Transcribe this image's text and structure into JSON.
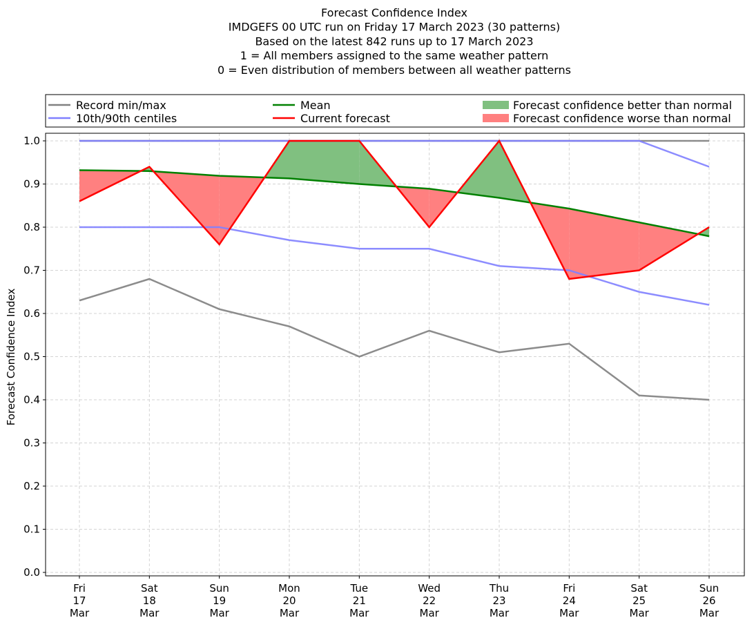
{
  "chart_data": {
    "type": "line",
    "title_lines": [
      "Forecast Confidence Index",
      "IMDGEFS 00 UTC run on Friday 17 March 2023 (30 patterns)",
      "Based on the latest 842 runs up to 17 March 2023",
      "1 = All members assigned to the same weather pattern",
      "0 = Even distribution of members between all weather patterns"
    ],
    "ylabel": "Forecast Confidence Index",
    "xlabel": "",
    "ylim": [
      0,
      1.0
    ],
    "yticks": [
      "0.0",
      "0.1",
      "0.2",
      "0.3",
      "0.4",
      "0.5",
      "0.6",
      "0.7",
      "0.8",
      "0.9",
      "1.0"
    ],
    "grid": true,
    "legend_placement": "top, above plot",
    "categories": [
      [
        "Fri",
        "17",
        "Mar"
      ],
      [
        "Sat",
        "18",
        "Mar"
      ],
      [
        "Sun",
        "19",
        "Mar"
      ],
      [
        "Mon",
        "20",
        "Mar"
      ],
      [
        "Tue",
        "21",
        "Mar"
      ],
      [
        "Wed",
        "22",
        "Mar"
      ],
      [
        "Thu",
        "23",
        "Mar"
      ],
      [
        "Fri",
        "24",
        "Mar"
      ],
      [
        "Sat",
        "25",
        "Mar"
      ],
      [
        "Sun",
        "26",
        "Mar"
      ]
    ],
    "series": [
      {
        "name": "Record min/max",
        "part": "min",
        "color": "#808080",
        "values": [
          0.63,
          0.68,
          0.61,
          0.57,
          0.5,
          0.56,
          0.51,
          0.53,
          0.41,
          0.4
        ]
      },
      {
        "name": "Record min/max",
        "part": "max",
        "color": "#808080",
        "values": [
          1.0,
          1.0,
          1.0,
          1.0,
          1.0,
          1.0,
          1.0,
          1.0,
          1.0,
          1.0
        ]
      },
      {
        "name": "10th/90th centiles",
        "part": "10th",
        "color": "#8080ff",
        "values": [
          0.8,
          0.8,
          0.8,
          0.77,
          0.75,
          0.75,
          0.71,
          0.7,
          0.65,
          0.62
        ]
      },
      {
        "name": "10th/90th centiles",
        "part": "90th",
        "color": "#8080ff",
        "values": [
          1.0,
          1.0,
          1.0,
          1.0,
          1.0,
          1.0,
          1.0,
          1.0,
          1.0,
          0.94
        ]
      },
      {
        "name": "Mean",
        "color": "#008000",
        "values": [
          0.932,
          0.93,
          0.919,
          0.913,
          0.9,
          0.889,
          0.868,
          0.843,
          0.811,
          0.779
        ]
      },
      {
        "name": "Current forecast",
        "color": "#ff0000",
        "values": [
          0.86,
          0.94,
          0.76,
          1.0,
          1.0,
          0.8,
          1.0,
          0.68,
          0.7,
          0.8
        ]
      }
    ],
    "fills": [
      {
        "name": "Forecast confidence better than normal",
        "color": "#80c080"
      },
      {
        "name": "Forecast confidence worse than normal",
        "color": "#ff8080"
      }
    ]
  }
}
